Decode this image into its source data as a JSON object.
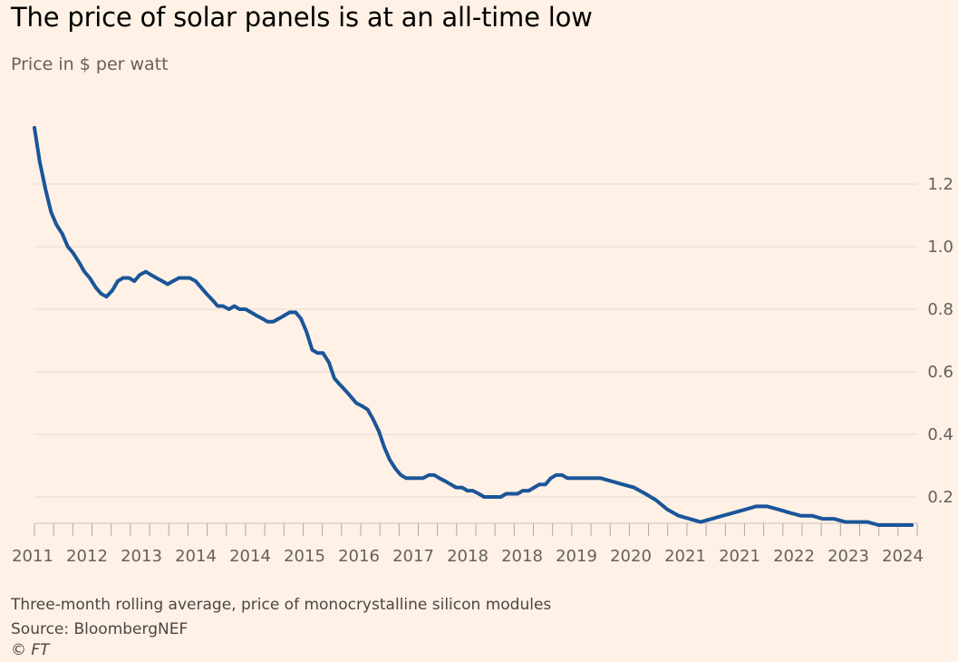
{
  "title": "The price of solar panels is at an all-time low",
  "subtitle": "Price in $ per watt",
  "footer": {
    "note": "Three-month rolling average, price of monocrystalline silicon modules",
    "source": "Source: BloombergNEF",
    "copyright": "© FT"
  },
  "colors": {
    "background": "#fff1e5",
    "line": "#1a5599",
    "grid": "#e6dcd3",
    "text": "#66605c"
  },
  "chart_data": {
    "type": "line",
    "title": "The price of solar panels is at an all-time low",
    "ylabel": "Price in $ per watt",
    "xlabel": "",
    "ylim": [
      0.1,
      1.4
    ],
    "y_ticks": [
      0.2,
      0.4,
      0.6,
      0.8,
      1.0,
      1.2
    ],
    "y_tick_labels": [
      "0.2",
      "0.4",
      "0.6",
      "0.8",
      "1.0",
      "1.2"
    ],
    "x_tick_labels": [
      "2011",
      "2012",
      "2013",
      "2014",
      "2014",
      "2015",
      "2016",
      "2017",
      "2018",
      "2018",
      "2019",
      "2020",
      "2021",
      "2021",
      "2022",
      "2023",
      "2024"
    ],
    "x_range": [
      2011.0,
      2024.25
    ],
    "grid": true,
    "legend": "none",
    "series": [
      {
        "x": [
          2011.0,
          2011.08,
          2011.17,
          2011.25,
          2011.33,
          2011.42,
          2011.5,
          2011.58,
          2011.67,
          2011.75,
          2011.83,
          2011.92,
          2012.0,
          2012.08,
          2012.17,
          2012.25,
          2012.33,
          2012.42,
          2012.5,
          2012.58,
          2012.67,
          2012.75,
          2012.83,
          2012.92,
          2013.0,
          2013.08,
          2013.17,
          2013.25,
          2013.33,
          2013.42,
          2013.5,
          2013.58,
          2013.67,
          2013.75,
          2013.83,
          2013.92,
          2014.0,
          2014.08,
          2014.17,
          2014.25,
          2014.33,
          2014.42,
          2014.5,
          2014.58,
          2014.67,
          2014.75,
          2014.83,
          2014.92,
          2015.0,
          2015.08,
          2015.17,
          2015.25,
          2015.33,
          2015.42,
          2015.5,
          2015.58,
          2015.67,
          2015.75,
          2015.83,
          2015.92,
          2016.0,
          2016.08,
          2016.17,
          2016.25,
          2016.33,
          2016.42,
          2016.5,
          2016.58,
          2016.67,
          2016.75,
          2016.83,
          2016.92,
          2017.0,
          2017.08,
          2017.17,
          2017.25,
          2017.33,
          2017.42,
          2017.5,
          2017.58,
          2017.67,
          2017.75,
          2017.83,
          2017.92,
          2018.0,
          2018.08,
          2018.17,
          2018.25,
          2018.33,
          2018.42,
          2018.5,
          2018.58,
          2018.67,
          2018.75,
          2018.83,
          2018.92,
          2019.0,
          2019.17,
          2019.33,
          2019.5,
          2019.67,
          2019.83,
          2020.0,
          2020.17,
          2020.33,
          2020.5,
          2020.67,
          2020.83,
          2021.0,
          2021.17,
          2021.33,
          2021.5,
          2021.67,
          2021.83,
          2022.0,
          2022.17,
          2022.33,
          2022.5,
          2022.67,
          2022.83,
          2023.0,
          2023.17,
          2023.33,
          2023.5,
          2023.67,
          2023.83,
          2024.0,
          2024.17
        ],
        "values": [
          1.38,
          1.27,
          1.18,
          1.11,
          1.07,
          1.04,
          1.0,
          0.98,
          0.95,
          0.92,
          0.9,
          0.87,
          0.85,
          0.84,
          0.86,
          0.89,
          0.9,
          0.9,
          0.89,
          0.91,
          0.92,
          0.91,
          0.9,
          0.89,
          0.88,
          0.89,
          0.9,
          0.9,
          0.9,
          0.89,
          0.87,
          0.85,
          0.83,
          0.81,
          0.81,
          0.8,
          0.81,
          0.8,
          0.8,
          0.79,
          0.78,
          0.77,
          0.76,
          0.76,
          0.77,
          0.78,
          0.79,
          0.79,
          0.77,
          0.73,
          0.67,
          0.66,
          0.66,
          0.63,
          0.58,
          0.56,
          0.54,
          0.52,
          0.5,
          0.49,
          0.48,
          0.45,
          0.41,
          0.36,
          0.32,
          0.29,
          0.27,
          0.26,
          0.26,
          0.26,
          0.26,
          0.27,
          0.27,
          0.26,
          0.25,
          0.24,
          0.23,
          0.23,
          0.22,
          0.22,
          0.21,
          0.2,
          0.2,
          0.2,
          0.2,
          0.21,
          0.21,
          0.21,
          0.22,
          0.22,
          0.23,
          0.24,
          0.24,
          0.26,
          0.27,
          0.27,
          0.26,
          0.26,
          0.26,
          0.26,
          0.25,
          0.24,
          0.23,
          0.21,
          0.19,
          0.16,
          0.14,
          0.13,
          0.12,
          0.13,
          0.14,
          0.15,
          0.16,
          0.17,
          0.17,
          0.16,
          0.15,
          0.14,
          0.14,
          0.13,
          0.13,
          0.12,
          0.12,
          0.12,
          0.11,
          0.11,
          0.11,
          0.11
        ]
      }
    ]
  }
}
